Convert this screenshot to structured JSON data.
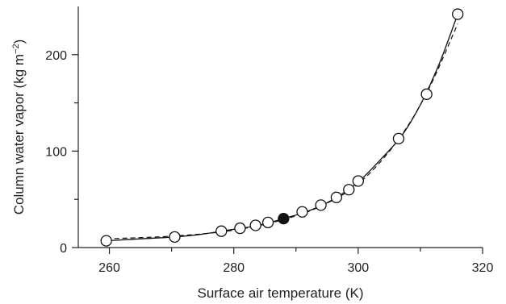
{
  "chart_data": {
    "type": "scatter",
    "title": "",
    "xlabel": "Surface air temperature (K)",
    "ylabel_main": "Column water vapor (kg m",
    "ylabel_sup": "−2",
    "ylabel_tail": ")",
    "xlim": [
      255,
      320
    ],
    "ylim": [
      0,
      250
    ],
    "x_ticks": [
      260,
      280,
      300,
      320
    ],
    "x_minor_ticks": [
      270,
      290,
      310
    ],
    "y_ticks": [
      0,
      100,
      200
    ],
    "y_minor_ticks": [
      50,
      150
    ],
    "series": [
      {
        "marker": "open-circle",
        "points": [
          {
            "x": 259.5,
            "y": 7
          },
          {
            "x": 270.5,
            "y": 11
          },
          {
            "x": 278.0,
            "y": 17
          },
          {
            "x": 281.0,
            "y": 20
          },
          {
            "x": 283.5,
            "y": 23
          },
          {
            "x": 285.5,
            "y": 26
          },
          {
            "x": 291.0,
            "y": 37
          },
          {
            "x": 294.0,
            "y": 44
          },
          {
            "x": 296.5,
            "y": 52
          },
          {
            "x": 298.5,
            "y": 60
          },
          {
            "x": 300.0,
            "y": 69
          },
          {
            "x": 306.5,
            "y": 113
          },
          {
            "x": 311.0,
            "y": 159
          },
          {
            "x": 316.0,
            "y": 242
          }
        ]
      },
      {
        "marker": "filled-circle",
        "points": [
          {
            "x": 288.0,
            "y": 30
          }
        ]
      }
    ],
    "lines": [
      {
        "style": "solid",
        "points": [
          [
            259.5,
            7
          ],
          [
            265,
            9
          ],
          [
            270.5,
            11
          ],
          [
            275,
            14
          ],
          [
            280,
            19
          ],
          [
            284,
            23
          ],
          [
            288,
            30
          ],
          [
            292,
            38
          ],
          [
            296,
            50
          ],
          [
            300,
            68
          ],
          [
            304,
            94
          ],
          [
            307,
            116
          ],
          [
            310,
            148
          ],
          [
            313,
            190
          ],
          [
            316,
            242
          ]
        ]
      },
      {
        "style": "dashed",
        "points": [
          [
            259.5,
            9
          ],
          [
            270.5,
            12
          ],
          [
            280,
            18
          ],
          [
            288,
            29
          ],
          [
            294,
            43
          ],
          [
            300,
            66
          ],
          [
            306,
            108
          ],
          [
            311,
            160
          ],
          [
            316,
            232
          ]
        ]
      }
    ],
    "grid": false,
    "legend": "none"
  }
}
